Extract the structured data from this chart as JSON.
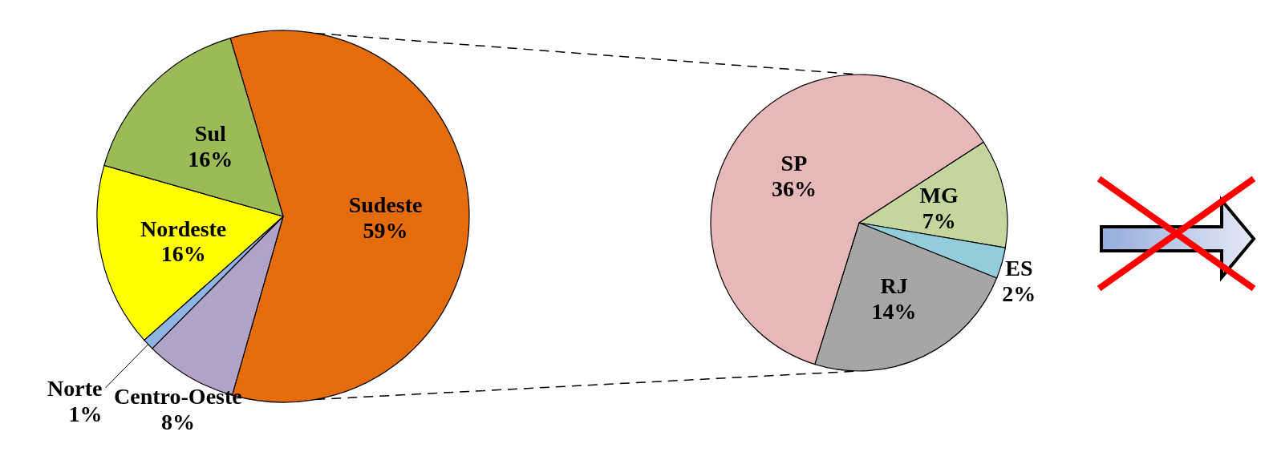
{
  "chart_data": [
    {
      "type": "pie",
      "categories": [
        "Sudeste",
        "Centro-Oeste",
        "Norte",
        "Nordeste",
        "Sul"
      ],
      "values": [
        59,
        8,
        1,
        16,
        16
      ],
      "colors": [
        "#e46c0a",
        "#b3a2c7",
        "#8eb4e3",
        "#ffff00",
        "#9bbb59"
      ],
      "value_labels": [
        "59%",
        "8%",
        "1%",
        "16%",
        "16%"
      ]
    },
    {
      "type": "pie",
      "categories": [
        "MG",
        "ES",
        "RJ",
        "SP"
      ],
      "values": [
        7,
        2,
        14,
        36
      ],
      "colors": [
        "#c3d69b",
        "#93cddd",
        "#a6a6a6",
        "#e6b9b8"
      ],
      "value_labels": [
        "7%",
        "2%",
        "14%",
        "36%"
      ]
    }
  ]
}
